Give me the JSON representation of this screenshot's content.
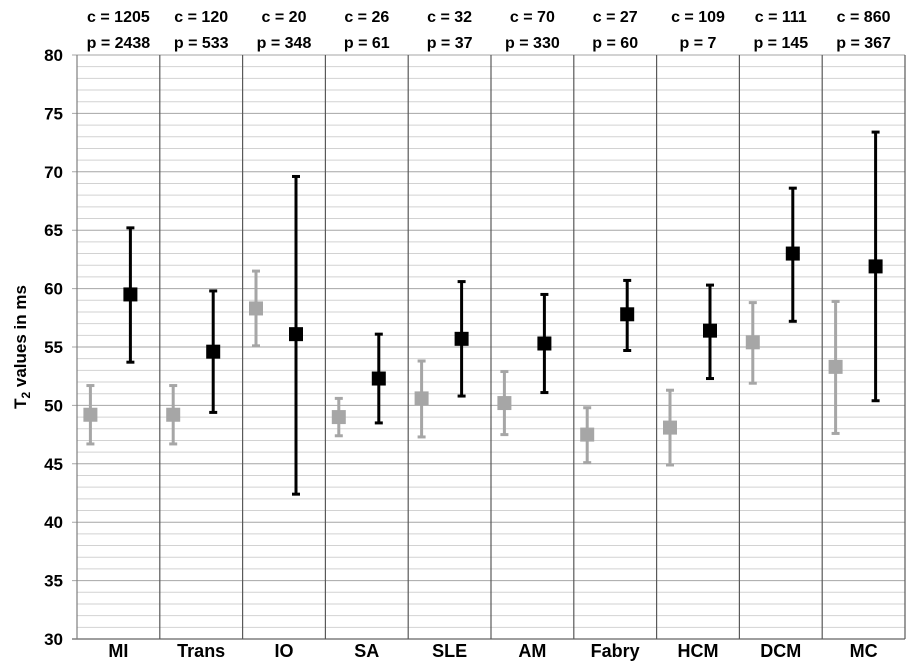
{
  "chart_data": {
    "type": "scatter",
    "ylabel": {
      "main": "T",
      "subscript": "2",
      "rest": " values in ms"
    },
    "ylim": [
      30,
      80
    ],
    "y_major_ticks": [
      30,
      35,
      40,
      45,
      50,
      55,
      60,
      65,
      70,
      75,
      80
    ],
    "y_minor_step": 1,
    "grid": true,
    "categories": [
      "MI",
      "Trans",
      "IO",
      "SA",
      "SLE",
      "AM",
      "Fabry",
      "HCM",
      "DCM",
      "MC"
    ],
    "column_headers": [
      {
        "c": "c = 1205",
        "p": "p = 2438"
      },
      {
        "c": "c = 120",
        "p": "p = 533"
      },
      {
        "c": "c = 20",
        "p": "p = 348"
      },
      {
        "c": "c = 26",
        "p": "p = 61"
      },
      {
        "c": "c = 32",
        "p": "p = 37"
      },
      {
        "c": "c = 70",
        "p": "p = 330"
      },
      {
        "c": "c = 27",
        "p": "p = 60"
      },
      {
        "c": "c = 109",
        "p": "p = 7"
      },
      {
        "c": "c = 111",
        "p": "p = 145"
      },
      {
        "c": "c = 860",
        "p": "p = 367"
      }
    ],
    "series": [
      {
        "key": "c",
        "color": "#a6a6a6",
        "values": [
          49.2,
          49.2,
          58.3,
          49.0,
          50.6,
          50.2,
          47.5,
          48.1,
          55.4,
          53.3
        ],
        "error_low": [
          46.7,
          46.7,
          55.1,
          47.4,
          47.3,
          47.5,
          45.1,
          44.9,
          51.9,
          47.6
        ],
        "error_high": [
          51.7,
          51.7,
          61.5,
          50.6,
          53.8,
          52.9,
          49.8,
          51.3,
          58.8,
          58.9
        ]
      },
      {
        "key": "p",
        "color": "#000000",
        "values": [
          59.5,
          54.6,
          56.1,
          52.3,
          55.7,
          55.3,
          57.8,
          56.4,
          63.0,
          61.9
        ],
        "error_low": [
          53.7,
          49.4,
          42.4,
          48.5,
          50.8,
          51.1,
          54.7,
          52.3,
          57.2,
          50.4
        ],
        "error_high": [
          65.2,
          59.8,
          69.6,
          56.1,
          60.6,
          59.5,
          60.7,
          60.3,
          68.6,
          73.4
        ]
      }
    ]
  }
}
